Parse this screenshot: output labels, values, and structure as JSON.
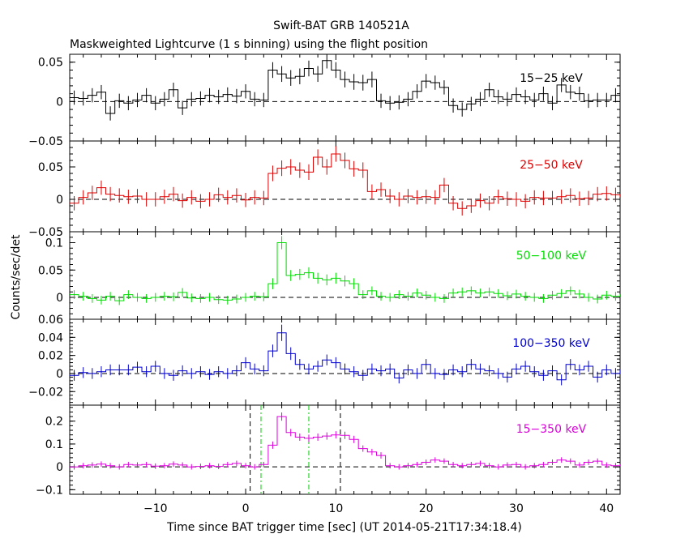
{
  "title": "Swift-BAT GRB 140521A",
  "subtitle": "Maskweighted Lightcurve (1 s binning) using the flight position",
  "xlabel": "Time since BAT trigger time [sec] (UT 2014-05-21T17:34:18.4)",
  "ylabel": "Counts/sec/det",
  "chart_data": {
    "type": "line",
    "step": "post",
    "x_start": -19.5,
    "bin_width": 1,
    "xlim": [
      -19.5,
      41.5
    ],
    "x_ticks": [
      -10,
      0,
      10,
      20,
      30,
      40
    ],
    "x_tick_labels": [
      "−10",
      "0",
      "10",
      "20",
      "30",
      "40"
    ],
    "vertical_lines": [
      {
        "x": 0.5,
        "color": "#000000"
      },
      {
        "x": 1.7,
        "color": "#00cc00"
      },
      {
        "x": 7.0,
        "color": "#00cc00"
      },
      {
        "x": 10.5,
        "color": "#000000"
      }
    ],
    "panels": [
      {
        "name": "15−25 keV",
        "color": "#000000",
        "ylim": [
          -0.05,
          0.06
        ],
        "yticks": [
          -0.05,
          0,
          0.05
        ],
        "ytick_labels": [
          "−0.05",
          "0",
          "0.05"
        ],
        "values": [
          0.005,
          0.004,
          0.008,
          0.012,
          -0.015,
          0.001,
          -0.002,
          0.002,
          0.008,
          -0.002,
          0.003,
          0.015,
          -0.008,
          0.003,
          0.004,
          0.008,
          0.006,
          0.009,
          0.007,
          0.013,
          0.003,
          0.002,
          0.04,
          0.035,
          0.03,
          0.032,
          0.042,
          0.035,
          0.052,
          0.04,
          0.028,
          0.025,
          0.024,
          0.028,
          0.001,
          -0.002,
          -0.001,
          0.003,
          0.013,
          0.026,
          0.024,
          0.018,
          -0.005,
          -0.01,
          -0.003,
          0.003,
          0.015,
          0.006,
          0.003,
          0.009,
          0.006,
          0.002,
          0.01,
          -0.002,
          0.021,
          0.012,
          0.01,
          0.001,
          0.002,
          0.002,
          0.008,
          -0.01,
          0.007
        ],
        "errors": [
          0.009,
          0.009,
          0.009,
          0.009,
          0.009,
          0.009,
          0.009,
          0.009,
          0.009,
          0.009,
          0.009,
          0.009,
          0.009,
          0.009,
          0.009,
          0.009,
          0.009,
          0.009,
          0.009,
          0.009,
          0.009,
          0.009,
          0.01,
          0.01,
          0.01,
          0.01,
          0.01,
          0.01,
          0.01,
          0.01,
          0.01,
          0.01,
          0.01,
          0.01,
          0.009,
          0.009,
          0.009,
          0.009,
          0.009,
          0.009,
          0.009,
          0.009,
          0.009,
          0.009,
          0.009,
          0.009,
          0.009,
          0.009,
          0.009,
          0.009,
          0.009,
          0.009,
          0.009,
          0.009,
          0.009,
          0.009,
          0.009,
          0.009,
          0.009,
          0.009,
          0.009,
          0.009,
          0.009
        ]
      },
      {
        "name": "25−50 keV",
        "color": "#dd0000",
        "ylim": [
          -0.05,
          0.09
        ],
        "yticks": [
          -0.05,
          0,
          0.05
        ],
        "ytick_labels": [
          "−0.05",
          "0",
          "0.05"
        ],
        "values": [
          -0.006,
          0.003,
          0.01,
          0.018,
          0.008,
          0.006,
          0.004,
          0.005,
          0.0,
          0.0,
          0.004,
          0.008,
          -0.002,
          0.003,
          -0.003,
          0.0,
          0.007,
          0.003,
          0.006,
          -0.001,
          0.003,
          0.002,
          0.04,
          0.048,
          0.05,
          0.045,
          0.042,
          0.065,
          0.05,
          0.07,
          0.06,
          0.047,
          0.045,
          0.012,
          0.015,
          0.005,
          0.0,
          0.005,
          0.003,
          0.004,
          0.003,
          0.022,
          -0.006,
          -0.014,
          -0.01,
          -0.002,
          -0.006,
          0.004,
          0.001,
          0.0,
          -0.003,
          0.003,
          0.002,
          0.002,
          0.004,
          0.006,
          0.001,
          0.002,
          0.008,
          0.009,
          0.007,
          0.004,
          0.016
        ],
        "errors": [
          0.011,
          0.011,
          0.011,
          0.011,
          0.011,
          0.011,
          0.011,
          0.011,
          0.011,
          0.011,
          0.011,
          0.011,
          0.011,
          0.011,
          0.011,
          0.011,
          0.011,
          0.011,
          0.011,
          0.011,
          0.011,
          0.011,
          0.012,
          0.012,
          0.012,
          0.012,
          0.012,
          0.012,
          0.012,
          0.012,
          0.012,
          0.012,
          0.012,
          0.011,
          0.011,
          0.011,
          0.011,
          0.011,
          0.011,
          0.011,
          0.011,
          0.011,
          0.011,
          0.011,
          0.011,
          0.011,
          0.011,
          0.011,
          0.011,
          0.011,
          0.011,
          0.011,
          0.011,
          0.011,
          0.011,
          0.011,
          0.011,
          0.011,
          0.011,
          0.011,
          0.011,
          0.011,
          0.011
        ]
      },
      {
        "name": "50−100 keV",
        "color": "#00dd00",
        "ylim": [
          -0.04,
          0.12
        ],
        "yticks": [
          0,
          0.05,
          0.1
        ],
        "ytick_labels": [
          "0",
          "0.05",
          "0.1"
        ],
        "values": [
          0.005,
          0.002,
          -0.002,
          -0.005,
          0.002,
          -0.006,
          0.005,
          0.0,
          -0.002,
          0.0,
          0.002,
          0.001,
          0.009,
          -0.001,
          -0.002,
          0.0,
          -0.004,
          -0.005,
          -0.003,
          0.0,
          0.002,
          0.001,
          0.025,
          0.1,
          0.04,
          0.042,
          0.045,
          0.035,
          0.032,
          0.035,
          0.03,
          0.025,
          0.005,
          0.012,
          0.002,
          0.0,
          0.005,
          0.002,
          0.008,
          0.004,
          0.0,
          -0.002,
          0.008,
          0.01,
          0.012,
          0.008,
          0.01,
          0.007,
          0.003,
          0.006,
          0.002,
          0.0,
          -0.002,
          0.004,
          0.007,
          0.012,
          0.006,
          0.0,
          -0.003,
          0.004,
          0.002,
          0.005,
          0.003
        ],
        "errors": [
          0.008,
          0.008,
          0.008,
          0.008,
          0.008,
          0.008,
          0.008,
          0.008,
          0.008,
          0.008,
          0.008,
          0.008,
          0.008,
          0.008,
          0.008,
          0.008,
          0.008,
          0.008,
          0.008,
          0.008,
          0.008,
          0.008,
          0.01,
          0.012,
          0.01,
          0.01,
          0.01,
          0.01,
          0.01,
          0.01,
          0.01,
          0.01,
          0.008,
          0.008,
          0.008,
          0.008,
          0.008,
          0.008,
          0.008,
          0.008,
          0.008,
          0.008,
          0.008,
          0.008,
          0.008,
          0.008,
          0.008,
          0.008,
          0.008,
          0.008,
          0.008,
          0.008,
          0.008,
          0.008,
          0.008,
          0.008,
          0.008,
          0.008,
          0.008,
          0.008,
          0.008,
          0.008,
          0.008
        ]
      },
      {
        "name": "100−350 keV",
        "color": "#0000cc",
        "ylim": [
          -0.035,
          0.06
        ],
        "yticks": [
          -0.02,
          0,
          0.02,
          0.04,
          0.06
        ],
        "ytick_labels": [
          "−0.02",
          "0",
          "0.02",
          "0.04",
          "0.06"
        ],
        "values": [
          -0.002,
          0.001,
          0.0,
          0.002,
          0.004,
          0.004,
          0.004,
          0.007,
          0.002,
          0.008,
          0.0,
          -0.002,
          0.003,
          0.0,
          0.002,
          -0.001,
          0.002,
          0.0,
          0.003,
          0.012,
          0.005,
          0.003,
          0.025,
          0.045,
          0.022,
          0.01,
          0.005,
          0.008,
          0.015,
          0.012,
          0.005,
          0.002,
          -0.002,
          0.005,
          0.003,
          0.005,
          -0.005,
          0.004,
          0.0,
          0.01,
          0.0,
          -0.001,
          0.004,
          0.002,
          0.01,
          0.005,
          0.003,
          0.0,
          -0.004,
          0.005,
          0.008,
          0.002,
          -0.002,
          0.003,
          -0.007,
          0.01,
          0.004,
          0.008,
          -0.004,
          0.004,
          0.0,
          0.004,
          0.002
        ],
        "errors": [
          0.006,
          0.006,
          0.006,
          0.006,
          0.006,
          0.006,
          0.006,
          0.006,
          0.006,
          0.006,
          0.006,
          0.006,
          0.006,
          0.006,
          0.006,
          0.006,
          0.006,
          0.006,
          0.006,
          0.006,
          0.006,
          0.006,
          0.007,
          0.009,
          0.007,
          0.006,
          0.006,
          0.006,
          0.006,
          0.006,
          0.006,
          0.006,
          0.006,
          0.006,
          0.006,
          0.006,
          0.006,
          0.006,
          0.006,
          0.006,
          0.006,
          0.006,
          0.006,
          0.006,
          0.006,
          0.006,
          0.006,
          0.006,
          0.006,
          0.006,
          0.006,
          0.006,
          0.006,
          0.006,
          0.006,
          0.006,
          0.006,
          0.006,
          0.006,
          0.006,
          0.006,
          0.006,
          0.006
        ]
      },
      {
        "name": "15−350 keV",
        "color": "#dd00dd",
        "ylim": [
          -0.12,
          0.27
        ],
        "yticks": [
          -0.1,
          0,
          0.1,
          0.2
        ],
        "ytick_labels": [
          "−0.1",
          "0",
          "0.1",
          "0.2"
        ],
        "values": [
          0.0,
          0.005,
          0.008,
          0.012,
          0.005,
          0.0,
          0.01,
          0.008,
          0.01,
          0.003,
          0.005,
          0.012,
          0.008,
          0.0,
          0.002,
          0.005,
          0.002,
          0.01,
          0.015,
          0.005,
          0.0,
          0.01,
          0.095,
          0.22,
          0.15,
          0.13,
          0.125,
          0.13,
          0.135,
          0.14,
          0.138,
          0.12,
          0.08,
          0.065,
          0.05,
          0.005,
          0.0,
          0.005,
          0.01,
          0.02,
          0.03,
          0.025,
          0.01,
          0.005,
          0.01,
          0.015,
          0.005,
          0.0,
          0.008,
          0.01,
          0.0,
          0.005,
          0.01,
          0.02,
          0.03,
          0.025,
          0.008,
          0.02,
          0.025,
          0.008,
          0.005,
          0.01,
          0.015
        ],
        "errors": [
          0.012,
          0.012,
          0.012,
          0.012,
          0.012,
          0.012,
          0.012,
          0.012,
          0.012,
          0.012,
          0.012,
          0.012,
          0.012,
          0.012,
          0.012,
          0.012,
          0.012,
          0.012,
          0.012,
          0.012,
          0.012,
          0.012,
          0.016,
          0.018,
          0.016,
          0.016,
          0.016,
          0.016,
          0.016,
          0.016,
          0.016,
          0.016,
          0.014,
          0.014,
          0.014,
          0.012,
          0.012,
          0.012,
          0.012,
          0.012,
          0.012,
          0.012,
          0.012,
          0.012,
          0.012,
          0.012,
          0.012,
          0.012,
          0.012,
          0.012,
          0.012,
          0.012,
          0.012,
          0.012,
          0.012,
          0.012,
          0.012,
          0.012,
          0.012,
          0.012,
          0.012,
          0.012,
          0.012
        ]
      }
    ]
  }
}
